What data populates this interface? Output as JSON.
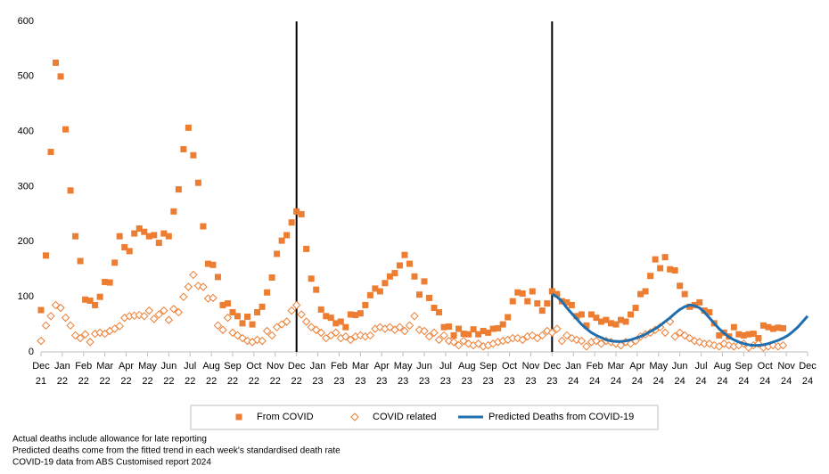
{
  "chart_data": {
    "type": "scatter",
    "x": [
      0,
      1,
      2,
      3,
      4,
      5,
      6,
      7,
      8,
      9,
      10,
      11,
      12,
      13,
      14,
      15,
      16,
      17,
      18,
      19,
      20,
      21,
      22,
      23,
      24,
      25,
      26,
      27,
      28,
      29,
      30,
      31,
      32,
      33,
      34,
      35,
      36,
      37,
      38,
      39,
      40,
      41,
      42,
      43,
      44,
      45,
      46,
      47,
      48,
      49,
      50,
      51,
      52,
      53,
      54,
      55,
      56,
      57,
      58,
      59,
      60,
      61,
      62,
      63,
      64,
      65,
      66,
      67,
      68,
      69,
      70,
      71,
      72,
      73,
      74,
      75,
      76,
      77,
      78,
      79,
      80,
      81,
      82,
      83,
      84,
      85,
      86,
      87,
      88,
      89,
      90,
      91,
      92,
      93,
      94,
      95,
      96,
      97,
      98,
      99,
      100,
      101,
      102,
      103,
      104,
      105,
      106,
      107,
      108,
      109,
      110,
      111,
      112,
      113,
      114,
      115,
      116,
      117,
      118,
      119,
      120,
      121,
      122,
      123,
      124,
      125,
      126,
      127,
      128,
      129,
      130,
      131,
      132,
      133,
      134,
      135,
      136,
      137,
      138,
      139,
      140,
      141,
      142,
      143,
      144,
      145,
      146,
      147,
      148,
      149,
      150,
      151,
      152,
      153,
      154,
      155,
      156
    ],
    "xlim": [
      0,
      156
    ],
    "xticks": [
      {
        "value": 0,
        "label": "Dec 21"
      },
      {
        "value": 4.33,
        "label": "Jan 22"
      },
      {
        "value": 8.67,
        "label": "Feb 22"
      },
      {
        "value": 13,
        "label": "Mar 22"
      },
      {
        "value": 17.33,
        "label": "Apr 22"
      },
      {
        "value": 21.67,
        "label": "May 22"
      },
      {
        "value": 26,
        "label": "Jun 22"
      },
      {
        "value": 30.33,
        "label": "Jul 22"
      },
      {
        "value": 34.67,
        "label": "Aug 22"
      },
      {
        "value": 39,
        "label": "Sep 22"
      },
      {
        "value": 43.33,
        "label": "Oct 22"
      },
      {
        "value": 47.67,
        "label": "Nov 22"
      },
      {
        "value": 52,
        "label": "Dec 22"
      },
      {
        "value": 56.33,
        "label": "Jan 23"
      },
      {
        "value": 60.67,
        "label": "Feb 23"
      },
      {
        "value": 65,
        "label": "Mar 23"
      },
      {
        "value": 69.33,
        "label": "Apr 23"
      },
      {
        "value": 73.67,
        "label": "May 23"
      },
      {
        "value": 78,
        "label": "Jun 23"
      },
      {
        "value": 82.33,
        "label": "Jul 23"
      },
      {
        "value": 86.67,
        "label": "Aug 23"
      },
      {
        "value": 91,
        "label": "Sep 23"
      },
      {
        "value": 95.33,
        "label": "Oct 23"
      },
      {
        "value": 99.67,
        "label": "Nov 23"
      },
      {
        "value": 104,
        "label": "Dec 23"
      },
      {
        "value": 108.33,
        "label": "Jan 24"
      },
      {
        "value": 112.67,
        "label": "Feb 24"
      },
      {
        "value": 117,
        "label": "Mar 24"
      },
      {
        "value": 121.33,
        "label": "Apr 24"
      },
      {
        "value": 125.67,
        "label": "May 24"
      },
      {
        "value": 130,
        "label": "Jun 24"
      },
      {
        "value": 134.33,
        "label": "Jul 24"
      },
      {
        "value": 138.67,
        "label": "Aug 24"
      },
      {
        "value": 143,
        "label": "Sep 24"
      },
      {
        "value": 147.33,
        "label": "Oct 24"
      },
      {
        "value": 151.67,
        "label": "Nov 24"
      },
      {
        "value": 156,
        "label": "Dec 24"
      }
    ],
    "ylim": [
      0,
      600
    ],
    "yticks": [
      0,
      100,
      200,
      300,
      400,
      500,
      600
    ],
    "vertical_lines": [
      52,
      104
    ],
    "series": [
      {
        "name": "From COVID",
        "marker": "square",
        "color": "#ED7D31",
        "values": [
          76,
          175,
          363,
          525,
          500,
          404,
          293,
          210,
          165,
          95,
          93,
          85,
          100,
          127,
          126,
          162,
          210,
          190,
          183,
          215,
          224,
          218,
          210,
          212,
          198,
          215,
          210,
          255,
          295,
          368,
          407,
          357,
          307,
          228,
          160,
          158,
          136,
          85,
          88,
          72,
          65,
          52,
          64,
          50,
          72,
          82,
          108,
          135,
          178,
          202,
          212,
          235,
          255,
          250,
          187,
          133,
          113,
          77,
          65,
          62,
          52,
          55,
          45,
          68,
          67,
          70,
          85,
          103,
          115,
          110,
          125,
          137,
          143,
          157,
          176,
          160,
          137,
          104,
          128,
          98,
          80,
          72,
          45,
          46,
          30,
          42,
          33,
          32,
          41,
          32,
          38,
          35,
          42,
          43,
          50,
          63,
          92,
          108,
          106,
          92,
          110,
          88,
          75,
          88,
          110,
          105,
          92,
          90,
          85,
          65,
          68,
          48,
          68,
          62,
          55,
          58,
          52,
          50,
          58,
          55,
          68,
          80,
          105,
          110,
          138,
          168,
          152,
          172,
          150,
          148,
          120,
          105,
          82,
          85,
          90,
          75,
          72,
          52,
          30,
          35,
          28,
          45,
          32,
          30,
          32,
          33,
          25,
          48,
          45,
          42,
          44,
          43,
          null,
          null,
          null,
          null,
          null
        ]
      },
      {
        "name": "COVID related",
        "marker": "diamond",
        "color": "#ED7D31",
        "values": [
          20,
          48,
          65,
          85,
          80,
          62,
          48,
          30,
          25,
          32,
          18,
          33,
          35,
          33,
          38,
          42,
          47,
          62,
          65,
          66,
          67,
          65,
          75,
          60,
          68,
          75,
          58,
          78,
          72,
          100,
          118,
          140,
          120,
          118,
          97,
          98,
          48,
          40,
          62,
          35,
          30,
          25,
          20,
          18,
          22,
          20,
          38,
          30,
          45,
          50,
          55,
          75,
          85,
          68,
          55,
          45,
          40,
          35,
          25,
          30,
          35,
          25,
          28,
          22,
          28,
          30,
          28,
          30,
          42,
          45,
          42,
          45,
          40,
          45,
          38,
          48,
          65,
          40,
          38,
          28,
          35,
          22,
          30,
          20,
          18,
          12,
          20,
          15,
          12,
          15,
          10,
          12,
          15,
          18,
          20,
          22,
          25,
          25,
          22,
          28,
          30,
          25,
          30,
          38,
          35,
          42,
          20,
          30,
          25,
          22,
          20,
          10,
          18,
          20,
          15,
          20,
          18,
          15,
          12,
          18,
          15,
          20,
          28,
          32,
          35,
          40,
          45,
          35,
          55,
          28,
          35,
          30,
          25,
          20,
          18,
          15,
          15,
          12,
          10,
          15,
          12,
          10,
          12,
          15,
          8,
          12,
          15,
          8,
          10,
          12,
          10,
          12,
          null,
          null,
          null,
          null,
          null
        ]
      },
      {
        "name": "Predicted Deaths from COVID-19",
        "marker": "line",
        "color": "#1F6FB0",
        "values": [
          null,
          null,
          null,
          null,
          null,
          null,
          null,
          null,
          null,
          null,
          null,
          null,
          null,
          null,
          null,
          null,
          null,
          null,
          null,
          null,
          null,
          null,
          null,
          null,
          null,
          null,
          null,
          null,
          null,
          null,
          null,
          null,
          null,
          null,
          null,
          null,
          null,
          null,
          null,
          null,
          null,
          null,
          null,
          null,
          null,
          null,
          null,
          null,
          null,
          null,
          null,
          null,
          null,
          null,
          null,
          null,
          null,
          null,
          null,
          null,
          null,
          null,
          null,
          null,
          null,
          null,
          null,
          null,
          null,
          null,
          null,
          null,
          null,
          null,
          null,
          null,
          null,
          null,
          null,
          null,
          null,
          null,
          null,
          null,
          null,
          null,
          null,
          null,
          null,
          null,
          null,
          null,
          null,
          null,
          null,
          null,
          null,
          null,
          null,
          null,
          null,
          null,
          null,
          null,
          105,
          100,
          92,
          80,
          70,
          60,
          50,
          42,
          35,
          30,
          26,
          22,
          20,
          19,
          19,
          20,
          22,
          25,
          28,
          32,
          37,
          42,
          48,
          55,
          62,
          70,
          77,
          82,
          85,
          84,
          80,
          72,
          62,
          52,
          42,
          34,
          27,
          22,
          18,
          15,
          13,
          12,
          12,
          13,
          15,
          18,
          21,
          25,
          30,
          37,
          45,
          55,
          65
        ]
      }
    ],
    "notes": [
      "Actual deaths include allowance for late reporting",
      "Predicted deaths  come from the fitted trend in each week's standardised death rate",
      "COVID-19 data from ABS Customised report 2024"
    ]
  }
}
